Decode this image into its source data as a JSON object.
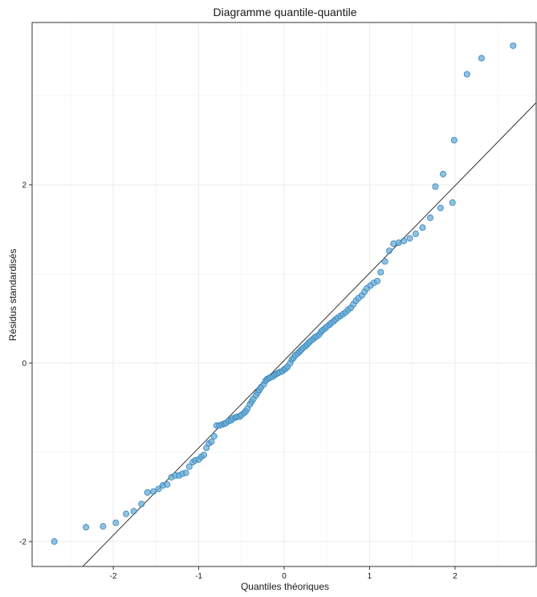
{
  "chart_data": {
    "type": "scatter",
    "title": "Diagramme quantile-quantile",
    "xlabel": "Quantiles théoriques",
    "ylabel": "Résidus standardisés",
    "xlim": [
      -2.95,
      2.95
    ],
    "ylim": [
      -2.28,
      3.82
    ],
    "x_ticks": [
      -2,
      -1,
      0,
      1,
      2
    ],
    "x_tick_labels": [
      "-2",
      "-1",
      "0",
      "1",
      "2"
    ],
    "y_ticks": [
      -2,
      0,
      2
    ],
    "y_tick_labels": [
      "-2",
      "0",
      "2"
    ],
    "grid": true,
    "legend": "none",
    "colors": {
      "point_fill": "#6baed6",
      "point_stroke": "#3182bd",
      "line": "#333333",
      "grid": "#ebebeb",
      "border": "#333333"
    },
    "reference_line": {
      "intercept": 0.03,
      "slope": 0.98
    },
    "points": [
      [
        -2.69,
        -2.0
      ],
      [
        -2.32,
        -1.84
      ],
      [
        -2.12,
        -1.83
      ],
      [
        -1.97,
        -1.79
      ],
      [
        -1.85,
        -1.69
      ],
      [
        -1.76,
        -1.66
      ],
      [
        -1.67,
        -1.58
      ],
      [
        -1.6,
        -1.45
      ],
      [
        -1.53,
        -1.44
      ],
      [
        -1.47,
        -1.41
      ],
      [
        -1.42,
        -1.37
      ],
      [
        -1.37,
        -1.36
      ],
      [
        -1.32,
        -1.28
      ],
      [
        -1.27,
        -1.26
      ],
      [
        -1.23,
        -1.26
      ],
      [
        -1.19,
        -1.24
      ],
      [
        -1.15,
        -1.23
      ],
      [
        -1.11,
        -1.16
      ],
      [
        -1.07,
        -1.11
      ],
      [
        -1.04,
        -1.09
      ],
      [
        -1.0,
        -1.08
      ],
      [
        -0.97,
        -1.05
      ],
      [
        -0.94,
        -1.03
      ],
      [
        -0.91,
        -0.95
      ],
      [
        -0.88,
        -0.9
      ],
      [
        -0.85,
        -0.88
      ],
      [
        -0.82,
        -0.82
      ],
      [
        -0.79,
        -0.7
      ],
      [
        -0.76,
        -0.7
      ],
      [
        -0.73,
        -0.69
      ],
      [
        -0.7,
        -0.68
      ],
      [
        -0.68,
        -0.67
      ],
      [
        -0.65,
        -0.65
      ],
      [
        -0.62,
        -0.64
      ],
      [
        -0.6,
        -0.62
      ],
      [
        -0.57,
        -0.61
      ],
      [
        -0.55,
        -0.6
      ],
      [
        -0.52,
        -0.6
      ],
      [
        -0.5,
        -0.58
      ],
      [
        -0.47,
        -0.56
      ],
      [
        -0.45,
        -0.54
      ],
      [
        -0.43,
        -0.51
      ],
      [
        -0.4,
        -0.46
      ],
      [
        -0.38,
        -0.43
      ],
      [
        -0.36,
        -0.4
      ],
      [
        -0.33,
        -0.36
      ],
      [
        -0.31,
        -0.33
      ],
      [
        -0.29,
        -0.3
      ],
      [
        -0.27,
        -0.27
      ],
      [
        -0.24,
        -0.24
      ],
      [
        -0.22,
        -0.2
      ],
      [
        -0.2,
        -0.18
      ],
      [
        -0.18,
        -0.17
      ],
      [
        -0.16,
        -0.16
      ],
      [
        -0.13,
        -0.15
      ],
      [
        -0.11,
        -0.13
      ],
      [
        -0.09,
        -0.12
      ],
      [
        -0.07,
        -0.11
      ],
      [
        -0.05,
        -0.1
      ],
      [
        -0.02,
        -0.09
      ],
      [
        0.0,
        -0.07
      ],
      [
        0.02,
        -0.06
      ],
      [
        0.04,
        -0.04
      ],
      [
        0.07,
        0.0
      ],
      [
        0.09,
        0.04
      ],
      [
        0.11,
        0.06
      ],
      [
        0.13,
        0.09
      ],
      [
        0.16,
        0.11
      ],
      [
        0.18,
        0.13
      ],
      [
        0.2,
        0.15
      ],
      [
        0.22,
        0.17
      ],
      [
        0.25,
        0.19
      ],
      [
        0.27,
        0.21
      ],
      [
        0.29,
        0.23
      ],
      [
        0.31,
        0.25
      ],
      [
        0.34,
        0.27
      ],
      [
        0.36,
        0.29
      ],
      [
        0.38,
        0.3
      ],
      [
        0.41,
        0.32
      ],
      [
        0.43,
        0.35
      ],
      [
        0.45,
        0.37
      ],
      [
        0.48,
        0.39
      ],
      [
        0.5,
        0.41
      ],
      [
        0.53,
        0.43
      ],
      [
        0.55,
        0.45
      ],
      [
        0.58,
        0.47
      ],
      [
        0.6,
        0.49
      ],
      [
        0.63,
        0.51
      ],
      [
        0.66,
        0.53
      ],
      [
        0.69,
        0.55
      ],
      [
        0.72,
        0.57
      ],
      [
        0.75,
        0.6
      ],
      [
        0.78,
        0.62
      ],
      [
        0.81,
        0.66
      ],
      [
        0.84,
        0.7
      ],
      [
        0.87,
        0.73
      ],
      [
        0.91,
        0.76
      ],
      [
        0.94,
        0.8
      ],
      [
        0.97,
        0.84
      ],
      [
        1.01,
        0.87
      ],
      [
        1.05,
        0.9
      ],
      [
        1.09,
        0.92
      ],
      [
        1.13,
        1.02
      ],
      [
        1.18,
        1.14
      ],
      [
        1.23,
        1.26
      ],
      [
        1.28,
        1.34
      ],
      [
        1.34,
        1.35
      ],
      [
        1.4,
        1.37
      ],
      [
        1.47,
        1.4
      ],
      [
        1.54,
        1.45
      ],
      [
        1.62,
        1.52
      ],
      [
        1.71,
        1.63
      ],
      [
        1.83,
        1.74
      ],
      [
        1.97,
        1.8
      ],
      [
        2.12,
        2.04
      ],
      [
        2.32,
        2.5
      ],
      [
        2.68,
        3.1
      ]
    ],
    "outliers": [
      [
        1.77,
        1.98
      ],
      [
        1.86,
        2.12
      ],
      [
        1.99,
        2.5
      ],
      [
        2.14,
        3.24
      ],
      [
        2.31,
        3.42
      ],
      [
        2.68,
        3.56
      ]
    ]
  }
}
